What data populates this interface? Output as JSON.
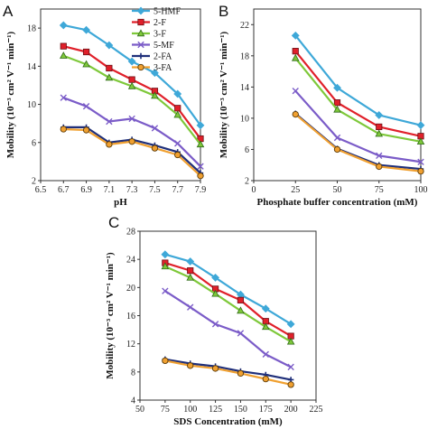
{
  "chart_data": [
    {
      "type": "line",
      "panel": "A",
      "xlabel": "pH",
      "ylabel": "Mobility (10⁻³ cm² V⁻¹ min⁻¹)",
      "xlim": [
        6.5,
        7.9
      ],
      "ylim": [
        2,
        20
      ],
      "xticks": [
        "6.5",
        "6.7",
        "6.9",
        "7.1",
        "7.3",
        "7.5",
        "7.7",
        "7.9"
      ],
      "yticks": [
        "2",
        "6",
        "10",
        "14",
        "18"
      ],
      "x": [
        6.7,
        6.9,
        7.1,
        7.3,
        7.5,
        7.7,
        7.9
      ],
      "legend": "top-right",
      "series": [
        {
          "name": "5-HMF",
          "color": "#3ea8d8",
          "marker": "diamond",
          "values": [
            18.3,
            17.8,
            16.2,
            14.5,
            13.3,
            11.1,
            7.8
          ]
        },
        {
          "name": "2-F",
          "color": "#e0202a",
          "marker": "square",
          "values": [
            16.1,
            15.5,
            13.8,
            12.6,
            11.4,
            9.6,
            6.4
          ]
        },
        {
          "name": "3-F",
          "color": "#7ec83a",
          "marker": "triangle",
          "values": [
            15.1,
            14.2,
            12.8,
            11.9,
            10.9,
            8.9,
            5.8
          ]
        },
        {
          "name": "5-MF",
          "color": "#7b5cc8",
          "marker": "x",
          "values": [
            10.7,
            9.8,
            8.2,
            8.5,
            7.5,
            5.9,
            3.5
          ]
        },
        {
          "name": "2-FA",
          "color": "#1f2f7a",
          "marker": "plus",
          "values": [
            7.6,
            7.6,
            6.0,
            6.3,
            5.7,
            5.0,
            2.8
          ]
        },
        {
          "name": "3-FA",
          "color": "#f0a030",
          "marker": "circle",
          "values": [
            7.4,
            7.3,
            5.8,
            6.1,
            5.4,
            4.7,
            2.5
          ]
        }
      ]
    },
    {
      "type": "line",
      "panel": "B",
      "xlabel": "Phosphate buffer concentration (mM)",
      "ylabel": "Mobility (10⁻³ cm² V⁻¹ min⁻¹)",
      "xlim": [
        0,
        100
      ],
      "ylim": [
        2,
        24
      ],
      "xticks": [
        "0",
        "25",
        "50",
        "75",
        "100"
      ],
      "yticks": [
        "2",
        "6",
        "10",
        "14",
        "18",
        "22"
      ],
      "x": [
        25,
        50,
        75,
        100
      ],
      "series": [
        {
          "name": "5-HMF",
          "color": "#3ea8d8",
          "marker": "diamond",
          "values": [
            20.6,
            13.9,
            10.4,
            9.1
          ]
        },
        {
          "name": "2-F",
          "color": "#e0202a",
          "marker": "square",
          "values": [
            18.6,
            12.0,
            8.9,
            7.7
          ]
        },
        {
          "name": "3-F",
          "color": "#7ec83a",
          "marker": "triangle",
          "values": [
            17.7,
            11.1,
            8.0,
            7.0
          ]
        },
        {
          "name": "5-MF",
          "color": "#7b5cc8",
          "marker": "x",
          "values": [
            13.5,
            7.5,
            5.2,
            4.4
          ]
        },
        {
          "name": "2-FA",
          "color": "#1f2f7a",
          "marker": "plus",
          "values": [
            10.6,
            6.1,
            4.0,
            3.5
          ]
        },
        {
          "name": "3-FA",
          "color": "#f0a030",
          "marker": "circle",
          "values": [
            10.5,
            6.0,
            3.8,
            3.2
          ]
        }
      ]
    },
    {
      "type": "line",
      "panel": "C",
      "xlabel": "SDS Concentration (mM)",
      "ylabel": "Mobility (10⁻³ cm² V⁻¹ min⁻¹)",
      "xlim": [
        50,
        225
      ],
      "ylim": [
        4,
        28
      ],
      "xticks": [
        "50",
        "75",
        "100",
        "125",
        "150",
        "175",
        "200",
        "225"
      ],
      "yticks": [
        "4",
        "8",
        "12",
        "16",
        "20",
        "24",
        "28"
      ],
      "x": [
        75,
        100,
        125,
        150,
        175,
        200
      ],
      "series": [
        {
          "name": "5-HMF",
          "color": "#3ea8d8",
          "marker": "diamond",
          "values": [
            24.7,
            23.7,
            21.4,
            19.0,
            17.0,
            14.8
          ]
        },
        {
          "name": "2-F",
          "color": "#e0202a",
          "marker": "square",
          "values": [
            23.5,
            22.4,
            19.8,
            18.2,
            15.2,
            13.1
          ]
        },
        {
          "name": "3-F",
          "color": "#7ec83a",
          "marker": "triangle",
          "values": [
            23.0,
            21.4,
            19.1,
            16.7,
            14.4,
            12.3
          ]
        },
        {
          "name": "5-MF",
          "color": "#7b5cc8",
          "marker": "x",
          "values": [
            19.5,
            17.2,
            14.8,
            13.5,
            10.5,
            8.7
          ]
        },
        {
          "name": "2-FA",
          "color": "#1f2f7a",
          "marker": "plus",
          "values": [
            9.8,
            9.2,
            8.8,
            8.1,
            7.6,
            6.9
          ]
        },
        {
          "name": "3-FA",
          "color": "#f0a030",
          "marker": "circle",
          "values": [
            9.6,
            8.9,
            8.5,
            7.8,
            7.0,
            6.2
          ]
        }
      ]
    }
  ]
}
